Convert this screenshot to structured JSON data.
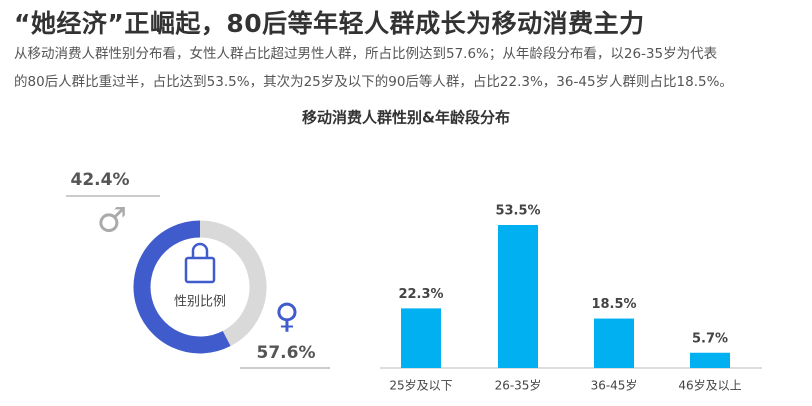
{
  "header": {
    "title": "“她经济”正崛起，80后等年轻人群成长为移动消费主力",
    "description": [
      "从移动消费人群性别分布看，女性人群占比超过男性人群，所占比例达到57.6%；从年龄段分布看，以26-35岁为代表",
      "的80后人群比重过半，占比达到53.5%，其次为25岁及以下的90后等人群，占比22.3%，36-45岁人群则占比18.5%。"
    ],
    "chart_title": "移动消费人群性别&年龄段分布"
  },
  "chart_data": [
    {
      "type": "donut",
      "center_label": "性别比例",
      "categories": [
        "♂",
        "♀"
      ],
      "values": [
        42.4,
        57.6
      ],
      "value_labels": [
        "42.4%",
        "57.6%"
      ],
      "colors": [
        "#d9d9d9",
        "#3f5bcc"
      ]
    },
    {
      "type": "bar",
      "categories": [
        "25岁及以下",
        "26-35岁",
        "36-45岁",
        "46岁及以上"
      ],
      "values": [
        22.3,
        53.5,
        18.5,
        5.7
      ],
      "value_labels": [
        "22.3%",
        "53.5%",
        "18.5%",
        "5.7%"
      ],
      "color": "#00b0f0"
    }
  ]
}
